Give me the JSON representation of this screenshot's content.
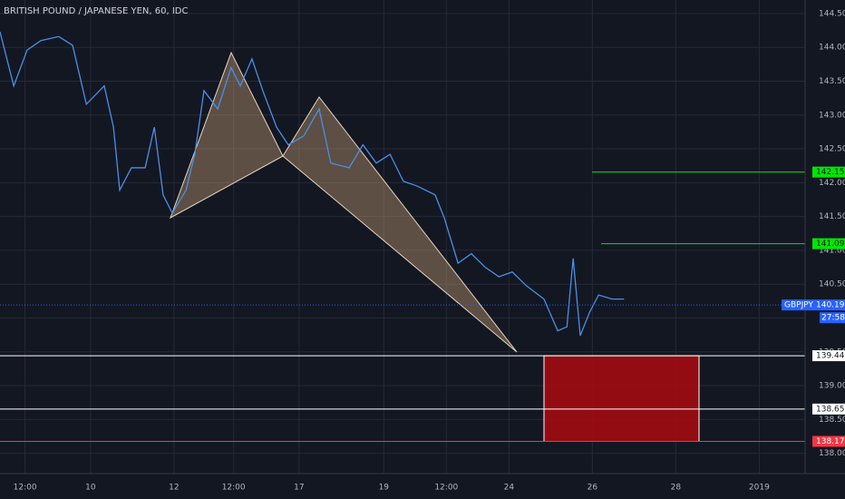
{
  "chart_data": {
    "type": "line",
    "title": "BRITISH POUND / JAPANESE YEN, 60, IDC",
    "symbol": "GBPJPY",
    "countdown": "27:58",
    "series": [
      {
        "name": "GBPJPY",
        "color": "#4a8fe7",
        "x": [
          0,
          0.33,
          0.65,
          0.98,
          1.41,
          1.74,
          2.07,
          2.5,
          2.72,
          2.87,
          3.15,
          3.48,
          3.7,
          3.91,
          4.13,
          4.46,
          4.67,
          4.89,
          5.22,
          5.54,
          5.76,
          6.04,
          6.3,
          6.63,
          6.91,
          7.28,
          7.65,
          7.93,
          8.37,
          8.7,
          9.02,
          9.35,
          9.67,
          10.0,
          10.43,
          10.65,
          10.98,
          11.3,
          11.63,
          11.96,
          12.28,
          12.61,
          13.04,
          13.37,
          13.59,
          13.74,
          13.91,
          14.13,
          14.35,
          14.67,
          14.96
        ],
        "values": [
          144.23,
          143.43,
          143.96,
          144.1,
          144.16,
          144.03,
          143.16,
          143.43,
          142.82,
          141.89,
          142.22,
          142.22,
          142.82,
          141.82,
          141.55,
          141.89,
          142.42,
          143.36,
          143.09,
          143.7,
          143.43,
          143.83,
          143.36,
          142.82,
          142.56,
          142.69,
          143.09,
          142.29,
          142.22,
          142.56,
          142.29,
          142.42,
          142.02,
          141.95,
          141.82,
          141.48,
          140.81,
          140.95,
          140.75,
          140.61,
          140.68,
          140.48,
          140.28,
          139.81,
          139.87,
          140.88,
          139.74,
          140.08,
          140.34,
          140.28,
          140.28
        ]
      }
    ],
    "levels": [
      {
        "value": 142.157,
        "color": "#00e600"
      },
      {
        "value": 141.098,
        "color": "#00e600"
      },
      {
        "value": 140.192,
        "color": "#2962ff"
      },
      {
        "value": 139.442,
        "color": "#ffffff"
      },
      {
        "value": 138.654,
        "color": "#ffffff"
      },
      {
        "value": 138.176,
        "color": "#f23645"
      }
    ],
    "xlim": [
      0,
      19.3
    ],
    "xticks": [
      {
        "value": 0.6,
        "label": "12:00"
      },
      {
        "value": 2.17,
        "label": "10"
      },
      {
        "value": 4.17,
        "label": "12"
      },
      {
        "value": 5.6,
        "label": "12:00"
      },
      {
        "value": 7.17,
        "label": "17"
      },
      {
        "value": 9.2,
        "label": "19"
      },
      {
        "value": 10.7,
        "label": "12:00"
      },
      {
        "value": 12.2,
        "label": "24"
      },
      {
        "value": 14.2,
        "label": "26"
      },
      {
        "value": 16.2,
        "label": "28"
      },
      {
        "value": 18.2,
        "label": "2019"
      }
    ],
    "ylim": [
      137.7,
      144.7
    ],
    "yticks": [
      {
        "value": 138,
        "label": "138.000"
      },
      {
        "value": 138.5,
        "label": "138.500"
      },
      {
        "value": 139,
        "label": "139.000"
      },
      {
        "value": 139.5,
        "label": "139.500"
      },
      {
        "value": 140,
        "label": "140.000"
      },
      {
        "value": 140.5,
        "label": "140.500"
      },
      {
        "value": 141,
        "label": "141.000"
      },
      {
        "value": 141.5,
        "label": "141.500"
      },
      {
        "value": 142,
        "label": "142.000"
      },
      {
        "value": 142.5,
        "label": "142.500"
      },
      {
        "value": 143,
        "label": "143.000"
      },
      {
        "value": 143.5,
        "label": "143.500"
      },
      {
        "value": 144,
        "label": "144.000"
      },
      {
        "value": 144.5,
        "label": "144.500"
      }
    ],
    "grid": true
  }
}
